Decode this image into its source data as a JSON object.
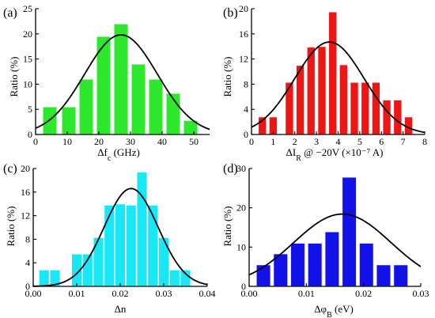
{
  "chart_data": [
    {
      "type": "bar",
      "panel_label": "(a)",
      "xlabel": "Δf",
      "xlabel_sub": "c",
      "xlabel_unit": " (GHz)",
      "ylabel": "Ratio (%)",
      "xlim": [
        0,
        55
      ],
      "ylim": [
        0,
        25
      ],
      "xticks": [
        0,
        10,
        20,
        30,
        40,
        50
      ],
      "yticks": [
        0,
        5,
        10,
        15,
        20,
        25
      ],
      "bar_color": "#2ee82e",
      "bar_width": 4.5,
      "bars": [
        {
          "x": 4.5,
          "y": 5.5
        },
        {
          "x": 10.5,
          "y": 5.5
        },
        {
          "x": 16.0,
          "y": 11.0
        },
        {
          "x": 21.5,
          "y": 19.5
        },
        {
          "x": 27.0,
          "y": 22.0
        },
        {
          "x": 32.5,
          "y": 14.0
        },
        {
          "x": 38.0,
          "y": 11.0
        },
        {
          "x": 43.5,
          "y": 8.2
        },
        {
          "x": 49.0,
          "y": 2.8
        }
      ],
      "fit": {
        "type": "gaussian",
        "mean": 27.0,
        "sigma": 11.5,
        "peak": 19.8
      }
    },
    {
      "type": "bar",
      "panel_label": "(b)",
      "xlabel": "ΔI",
      "xlabel_sub": "R",
      "xlabel_unit": " @ −20V (×10⁻⁷ A)",
      "ylabel": "Ratio (%)",
      "xlim": [
        0,
        8
      ],
      "ylim": [
        0,
        20
      ],
      "xticks": [
        0,
        1,
        2,
        3,
        4,
        5,
        6,
        7,
        8
      ],
      "yticks": [
        0,
        4,
        8,
        12,
        16,
        20
      ],
      "bar_color": "#ee1515",
      "bar_width": 0.38,
      "bars": [
        {
          "x": 0.5,
          "y": 2.8
        },
        {
          "x": 1.0,
          "y": 2.8
        },
        {
          "x": 1.75,
          "y": 8.3
        },
        {
          "x": 2.25,
          "y": 11.0
        },
        {
          "x": 2.75,
          "y": 13.9
        },
        {
          "x": 3.25,
          "y": 14.0
        },
        {
          "x": 3.75,
          "y": 19.5
        },
        {
          "x": 4.25,
          "y": 11.1
        },
        {
          "x": 4.75,
          "y": 8.3
        },
        {
          "x": 5.25,
          "y": 8.3
        },
        {
          "x": 5.75,
          "y": 8.3
        },
        {
          "x": 6.25,
          "y": 5.5
        },
        {
          "x": 6.75,
          "y": 5.5
        },
        {
          "x": 7.25,
          "y": 2.8
        }
      ],
      "fit": {
        "type": "gaussian",
        "mean": 3.6,
        "sigma": 1.6,
        "peak": 14.7
      }
    },
    {
      "type": "bar",
      "panel_label": "(c)",
      "xlabel": "Δn",
      "xlabel_sub": "",
      "xlabel_unit": "",
      "ylabel": "Ratio (%)",
      "xlim": [
        0,
        0.04
      ],
      "ylim": [
        0,
        20
      ],
      "xticks": [
        0.0,
        0.01,
        0.02,
        0.03,
        0.04
      ],
      "xtick_labels": [
        "0.00",
        "0.01",
        "0.02",
        "0.03",
        "0.04"
      ],
      "yticks": [
        0,
        4,
        8,
        12,
        16,
        20
      ],
      "bar_color": "#18e8f5",
      "bar_width": 0.0024,
      "bars": [
        {
          "x": 0.0025,
          "y": 2.8
        },
        {
          "x": 0.005,
          "y": 2.8
        },
        {
          "x": 0.01,
          "y": 5.5
        },
        {
          "x": 0.0125,
          "y": 5.5
        },
        {
          "x": 0.015,
          "y": 8.3
        },
        {
          "x": 0.0175,
          "y": 13.8
        },
        {
          "x": 0.02,
          "y": 14.0
        },
        {
          "x": 0.0225,
          "y": 13.8
        },
        {
          "x": 0.025,
          "y": 19.4
        },
        {
          "x": 0.0275,
          "y": 13.8
        },
        {
          "x": 0.03,
          "y": 8.3
        },
        {
          "x": 0.0325,
          "y": 2.8
        },
        {
          "x": 0.035,
          "y": 2.8
        }
      ],
      "fit": {
        "type": "gaussian",
        "mean": 0.0225,
        "sigma": 0.0062,
        "peak": 16.6
      }
    },
    {
      "type": "bar",
      "panel_label": "(d)",
      "xlabel": "Δφ",
      "xlabel_sub": "B",
      "xlabel_unit": " (eV)",
      "ylabel": "Ratio (%)",
      "xlim": [
        0,
        0.03
      ],
      "ylim": [
        0,
        30
      ],
      "xticks": [
        0.0,
        0.01,
        0.02,
        0.03
      ],
      "xtick_labels": [
        "0.00",
        "0.01",
        "0.02",
        "0.03"
      ],
      "yticks": [
        0,
        10,
        20,
        30
      ],
      "bar_color": "#1212e8",
      "bar_width": 0.0025,
      "bars": [
        {
          "x": 0.0025,
          "y": 5.5
        },
        {
          "x": 0.0055,
          "y": 8.3
        },
        {
          "x": 0.0085,
          "y": 11.0
        },
        {
          "x": 0.0115,
          "y": 11.0
        },
        {
          "x": 0.0145,
          "y": 13.9
        },
        {
          "x": 0.0175,
          "y": 27.8
        },
        {
          "x": 0.0205,
          "y": 11.0
        },
        {
          "x": 0.0235,
          "y": 5.5
        },
        {
          "x": 0.0265,
          "y": 5.5
        }
      ],
      "fit": {
        "type": "gaussian",
        "mean": 0.0163,
        "sigma": 0.0085,
        "peak": 18.4
      }
    }
  ]
}
